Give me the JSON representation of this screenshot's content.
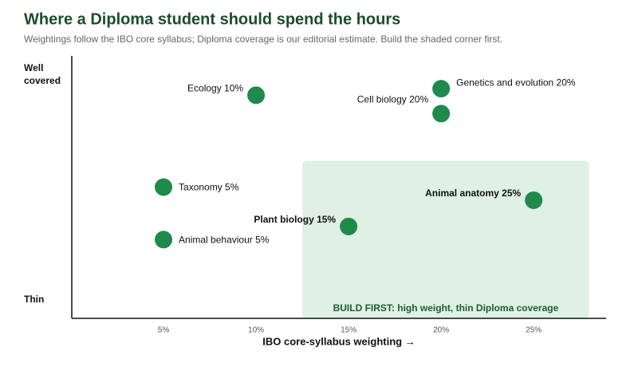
{
  "chart_data": {
    "type": "scatter",
    "title": "Where a Diploma student should spend the hours",
    "subtitle": "Weightings follow the IBO core syllabus; Diploma coverage is our editorial estimate. Build the shaded corner first.",
    "x_label": "IBO core-syllabus weighting →",
    "y_top_label": "Well covered",
    "y_bottom_label": "Thin",
    "color": "#1f8a4c",
    "labels": [
      "Ecology 10%",
      "Genetics and evolution 20%",
      "Cell biology 20%",
      "Taxonomy 5%",
      "Animal anatomy 25%",
      "Plant biology 15%",
      "Animal behaviour 5%"
    ],
    "x": [
      10,
      20,
      20,
      5,
      25,
      15,
      5
    ],
    "values": [
      85,
      87.5,
      78,
      50,
      45,
      35,
      30
    ],
    "xlim": [
      0,
      29
    ],
    "ylim": [
      0,
      100
    ],
    "xticks": [
      {
        "value": 5,
        "label": "5%"
      },
      {
        "value": 10,
        "label": "10%"
      },
      {
        "value": 15,
        "label": "15%"
      },
      {
        "value": 20,
        "label": "20%"
      },
      {
        "value": 25,
        "label": "25%"
      }
    ],
    "highlight": {
      "xlim": [
        12.5,
        28
      ],
      "ylim": [
        0,
        60
      ],
      "color": "#dff0e4",
      "label": "BUILD FIRST: high weight, thin Diploma coverage"
    }
  }
}
